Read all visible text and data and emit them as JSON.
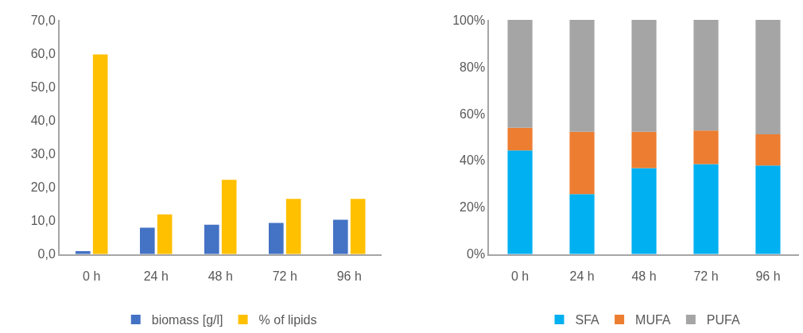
{
  "chart_data": [
    {
      "type": "bar",
      "categories": [
        "0 h",
        "24 h",
        "48 h",
        "72 h",
        "96 h"
      ],
      "series": [
        {
          "name": "biomass [g/l]",
          "color": "#4472c4",
          "values": [
            0.9,
            7.9,
            8.8,
            9.3,
            10.3
          ]
        },
        {
          "name": "% of lipids",
          "color": "#ffc000",
          "values": [
            59.7,
            11.9,
            22.2,
            16.5,
            16.5
          ]
        }
      ],
      "ylim": [
        0,
        70
      ],
      "yticks": [
        {
          "value": 0,
          "label": "0,0"
        },
        {
          "value": 10,
          "label": "10,0"
        },
        {
          "value": 20,
          "label": "20,0"
        },
        {
          "value": 30,
          "label": "30,0"
        },
        {
          "value": 40,
          "label": "40,0"
        },
        {
          "value": 50,
          "label": "50,0"
        },
        {
          "value": 60,
          "label": "60,0"
        },
        {
          "value": 70,
          "label": "70,0"
        }
      ],
      "grid": false,
      "legend": "bottom"
    },
    {
      "type": "bar",
      "stacked": true,
      "categories": [
        "0 h",
        "24 h",
        "48 h",
        "72 h",
        "96 h"
      ],
      "series": [
        {
          "name": "SFA",
          "color": "#00b0f0",
          "values": [
            44.3,
            25.6,
            36.7,
            38.4,
            37.8
          ]
        },
        {
          "name": "MUFA",
          "color": "#ed7d31",
          "values": [
            9.7,
            26.7,
            15.6,
            14.4,
            13.4
          ]
        },
        {
          "name": "PUFA",
          "color": "#a5a5a5",
          "values": [
            46.0,
            47.7,
            47.7,
            47.2,
            48.8
          ]
        }
      ],
      "ylim": [
        0,
        100
      ],
      "yticks": [
        {
          "value": 0,
          "label": "0%"
        },
        {
          "value": 20,
          "label": "20%"
        },
        {
          "value": 40,
          "label": "40%"
        },
        {
          "value": 60,
          "label": "60%"
        },
        {
          "value": 80,
          "label": "80%"
        },
        {
          "value": 100,
          "label": "100%"
        }
      ],
      "grid": false,
      "legend": "bottom"
    }
  ]
}
